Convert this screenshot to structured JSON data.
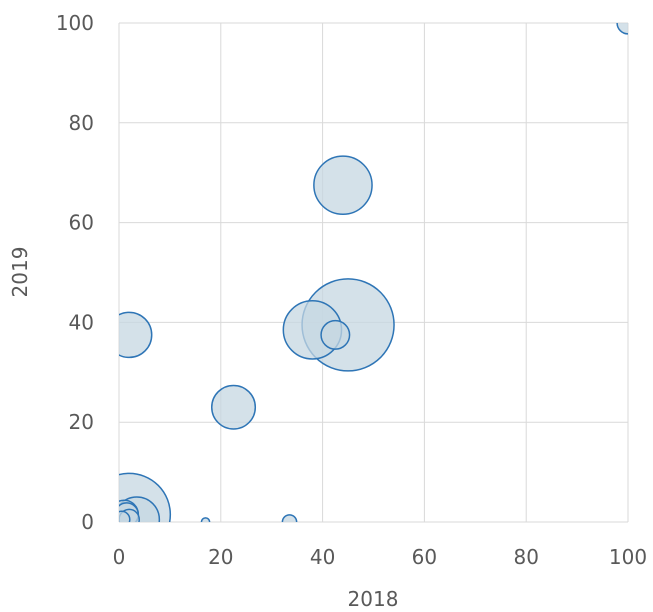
{
  "chart_data": {
    "type": "bubble",
    "title": "",
    "xlabel": "2018",
    "ylabel": "2019",
    "xlim": [
      0,
      100
    ],
    "ylim": [
      0,
      100
    ],
    "xticks": [
      "0",
      "20",
      "40",
      "60",
      "80",
      "100"
    ],
    "yticks": [
      "0",
      "20",
      "40",
      "60",
      "80",
      "100"
    ],
    "grid": true,
    "legend": "none",
    "colors": {
      "bubble_fill": "#c6d7e2",
      "bubble_stroke": "#2e75b6",
      "grid": "#d9d9d9",
      "text": "#595959"
    },
    "points": [
      {
        "x": 2,
        "y": 1.5,
        "size": 100
      },
      {
        "x": 3.5,
        "y": 0.5,
        "size": 30
      },
      {
        "x": 1,
        "y": 1.5,
        "size": 12
      },
      {
        "x": 1.5,
        "y": 1.5,
        "size": 8
      },
      {
        "x": 2,
        "y": 0.5,
        "size": 6
      },
      {
        "x": 0.5,
        "y": 0.5,
        "size": 4
      },
      {
        "x": 17,
        "y": 0,
        "size": 1
      },
      {
        "x": 33.5,
        "y": 0,
        "size": 3
      },
      {
        "x": 22.5,
        "y": 23,
        "size": 28
      },
      {
        "x": 2,
        "y": 37.5,
        "size": 30
      },
      {
        "x": 38,
        "y": 38.5,
        "size": 50
      },
      {
        "x": 45,
        "y": 39.5,
        "size": 125
      },
      {
        "x": 42.5,
        "y": 37.5,
        "size": 12
      },
      {
        "x": 44,
        "y": 67.5,
        "size": 50
      },
      {
        "x": 100,
        "y": 100,
        "size": 7
      }
    ]
  }
}
